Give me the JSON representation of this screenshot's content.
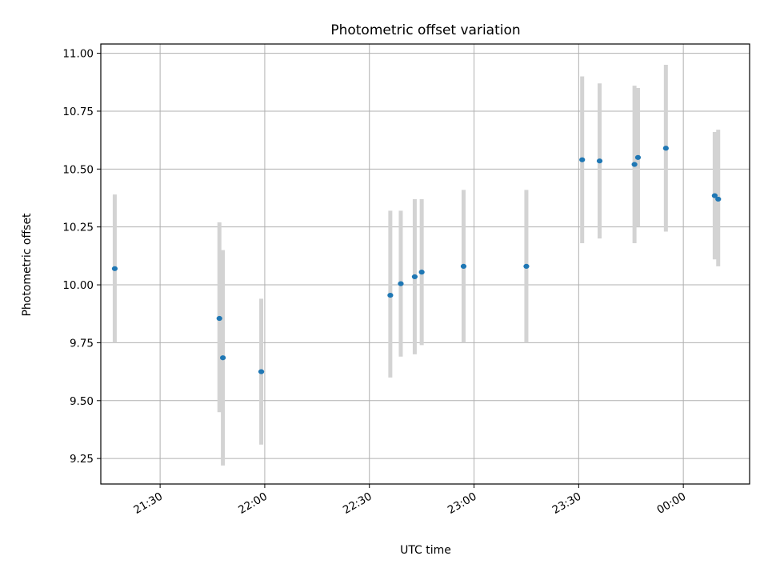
{
  "chart_data": {
    "type": "scatter",
    "title": "Photometric offset variation",
    "xlabel": "UTC time",
    "ylabel": "Photometric offset",
    "x_axis_kind": "time",
    "xlim": [
      "21:13",
      "00:19"
    ],
    "ylim": [
      9.14,
      11.04
    ],
    "x_ticks": [
      "21:30",
      "22:00",
      "22:30",
      "23:00",
      "23:30",
      "00:00"
    ],
    "y_ticks": [
      "9.25",
      "9.50",
      "9.75",
      "10.00",
      "10.25",
      "10.50",
      "10.75",
      "11.00"
    ],
    "grid": true,
    "points": [
      {
        "t": "21:17",
        "y": 10.07,
        "err_low": 9.75,
        "err_high": 10.39
      },
      {
        "t": "21:47",
        "y": 9.855,
        "err_low": 9.45,
        "err_high": 10.27
      },
      {
        "t": "21:48",
        "y": 9.685,
        "err_low": 9.22,
        "err_high": 10.15
      },
      {
        "t": "21:59",
        "y": 9.625,
        "err_low": 9.31,
        "err_high": 9.94
      },
      {
        "t": "22:36",
        "y": 9.955,
        "err_low": 9.6,
        "err_high": 10.32
      },
      {
        "t": "22:39",
        "y": 10.005,
        "err_low": 9.69,
        "err_high": 10.32
      },
      {
        "t": "22:43",
        "y": 10.035,
        "err_low": 9.7,
        "err_high": 10.37
      },
      {
        "t": "22:45",
        "y": 10.055,
        "err_low": 9.74,
        "err_high": 10.37
      },
      {
        "t": "22:57",
        "y": 10.08,
        "err_low": 9.75,
        "err_high": 10.41
      },
      {
        "t": "23:15",
        "y": 10.08,
        "err_low": 9.75,
        "err_high": 10.41
      },
      {
        "t": "23:31",
        "y": 10.54,
        "err_low": 10.18,
        "err_high": 10.9
      },
      {
        "t": "23:36",
        "y": 10.535,
        "err_low": 10.2,
        "err_high": 10.87
      },
      {
        "t": "23:46",
        "y": 10.52,
        "err_low": 10.18,
        "err_high": 10.86
      },
      {
        "t": "23:47",
        "y": 10.55,
        "err_low": 10.25,
        "err_high": 10.85
      },
      {
        "t": "23:55",
        "y": 10.59,
        "err_low": 10.23,
        "err_high": 10.95
      },
      {
        "t": "00:09",
        "y": 10.385,
        "err_low": 10.11,
        "err_high": 10.66
      },
      {
        "t": "00:10",
        "y": 10.37,
        "err_low": 10.08,
        "err_high": 10.67
      }
    ],
    "colors": {
      "point": "#1f77b4",
      "errorbar": "#d3d3d3",
      "grid": "#b0b0b0"
    }
  }
}
